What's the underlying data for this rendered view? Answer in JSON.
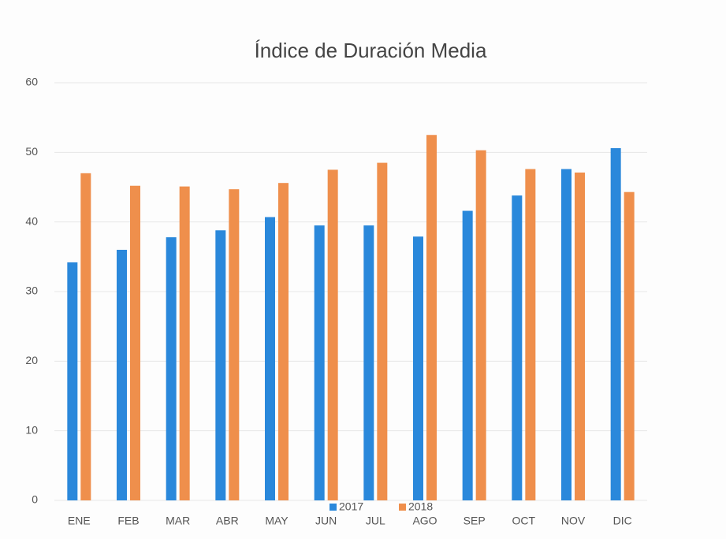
{
  "chart_data": {
    "type": "bar",
    "title": "Índice de Duración Media",
    "categories": [
      "ENE",
      "FEB",
      "MAR",
      "ABR",
      "MAY",
      "JUN",
      "JUL",
      "AGO",
      "SEP",
      "OCT",
      "NOV",
      "DIC"
    ],
    "series": [
      {
        "name": "2017",
        "color": "#2a88db",
        "values": [
          34.2,
          36,
          37.8,
          38.8,
          40.7,
          39.5,
          39.5,
          37.9,
          41.6,
          43.8,
          47.6,
          50.6
        ]
      },
      {
        "name": "2018",
        "color": "#ef8f4c",
        "values": [
          47,
          45.2,
          45.1,
          44.7,
          45.6,
          47.5,
          48.5,
          52.5,
          50.3,
          47.6,
          47.1,
          44.3
        ]
      }
    ],
    "ylim": [
      0,
      60
    ],
    "yticks": [
      0,
      10,
      20,
      30,
      40,
      50,
      60
    ],
    "grid": true,
    "legend": "bottom"
  }
}
